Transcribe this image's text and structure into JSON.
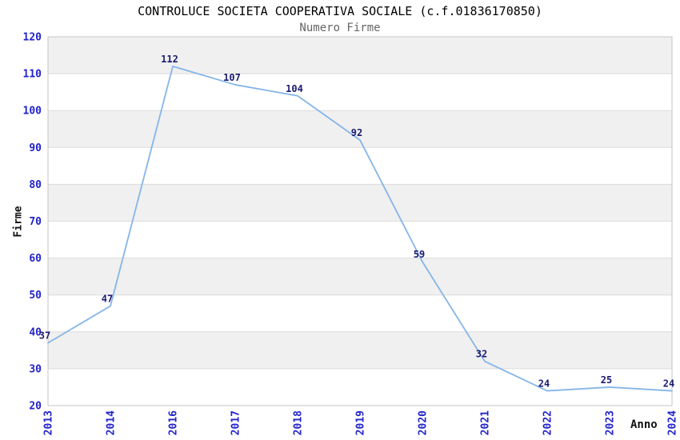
{
  "chart_data": {
    "type": "line",
    "title": "CONTROLUCE SOCIETA COOPERATIVA SOCIALE (c.f.01836170850)",
    "subtitle": "Numero Firme",
    "xlabel": "Anno",
    "ylabel": "Firme",
    "categories": [
      "2013",
      "2014",
      "2016",
      "2017",
      "2018",
      "2019",
      "2020",
      "2021",
      "2022",
      "2023",
      "2024"
    ],
    "values": [
      37,
      47,
      112,
      107,
      104,
      92,
      59,
      32,
      24,
      25,
      24
    ],
    "ylim": [
      20,
      120
    ],
    "yticks": [
      20,
      30,
      40,
      50,
      60,
      70,
      80,
      90,
      100,
      110,
      120
    ],
    "grid": "alternating-horizontal-bands",
    "legend": "none",
    "colors": {
      "line": "#85b5e8",
      "tick_label": "#2323cc",
      "value_label": "#1b1b70",
      "band": "#f0f0f0",
      "gridline": "#dcdcdc",
      "border": "#c6c6c6",
      "title": "#000000",
      "subtitle": "#666666",
      "axis_title": "#111111",
      "background": "#ffffff"
    }
  }
}
